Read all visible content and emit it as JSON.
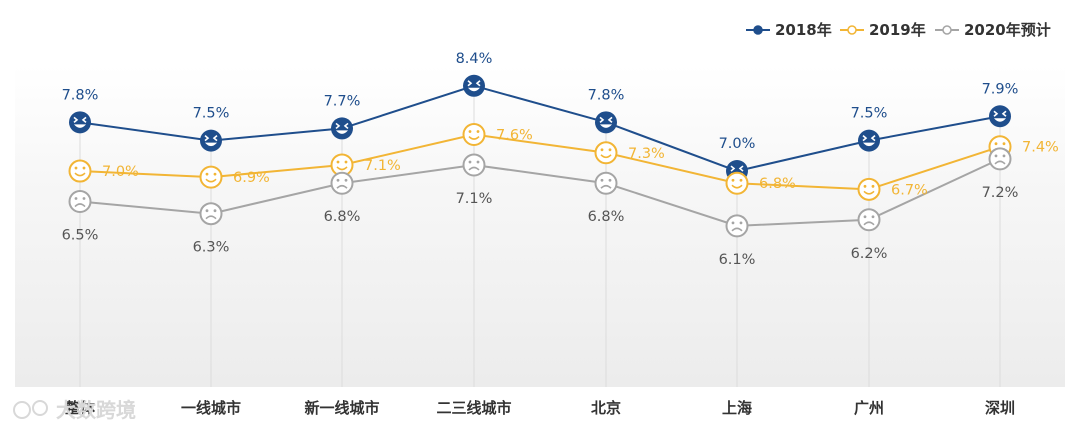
{
  "watermark": {
    "text": "大数跨境"
  },
  "chart_data": {
    "type": "line",
    "categories": [
      "整体",
      "一线城市",
      "新一线城市",
      "二三线城市",
      "北京",
      "上海",
      "广州",
      "深圳"
    ],
    "series": [
      {
        "name": "2018年",
        "color": "#1f4e8c",
        "icon": "happy-face-icon",
        "values": [
          7.8,
          7.5,
          7.7,
          8.4,
          7.8,
          7.0,
          7.5,
          7.9
        ],
        "labels": [
          "7.8%",
          "7.5%",
          "7.7%",
          "8.4%",
          "7.8%",
          "7.0%",
          "7.5%",
          "7.9%"
        ]
      },
      {
        "name": "2019年",
        "color": "#f2b535",
        "icon": "smile-face-icon",
        "values": [
          7.0,
          6.9,
          7.1,
          7.6,
          7.3,
          6.8,
          6.7,
          7.4
        ],
        "labels": [
          "7.0%",
          "6.9%",
          "7.1%",
          "7.6%",
          "7.3%",
          "6.8%",
          "6.7%",
          "7.4%"
        ]
      },
      {
        "name": "2020年预计",
        "color": "#a5a5a5",
        "icon": "sad-face-icon",
        "values": [
          6.5,
          6.3,
          6.8,
          7.1,
          6.8,
          6.1,
          6.2,
          7.2
        ],
        "labels": [
          "6.5%",
          "6.3%",
          "6.8%",
          "7.1%",
          "6.8%",
          "6.1%",
          "6.2%",
          "7.2%"
        ]
      }
    ],
    "legend": "top-right",
    "grid": "vertical-drop-lines"
  }
}
